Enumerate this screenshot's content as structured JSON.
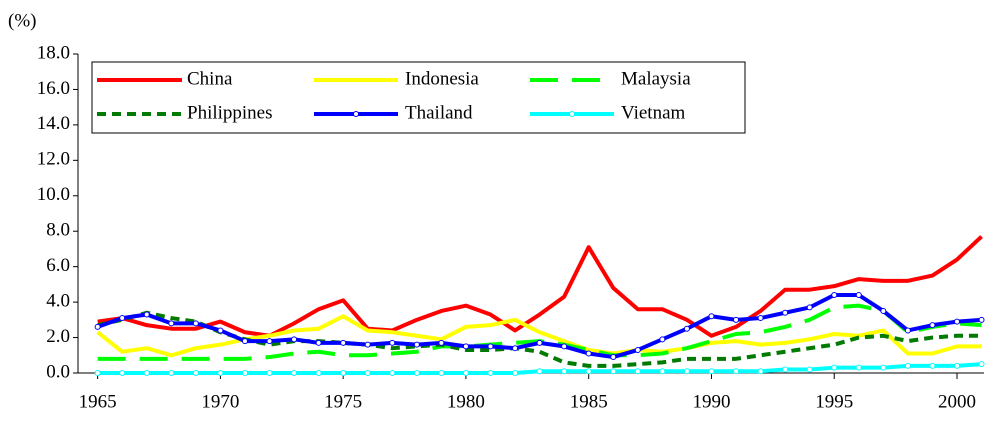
{
  "chart_data": {
    "type": "line",
    "y_label": "(%)",
    "x": [
      1965,
      1966,
      1967,
      1968,
      1969,
      1970,
      1971,
      1972,
      1973,
      1974,
      1975,
      1976,
      1977,
      1978,
      1979,
      1980,
      1981,
      1982,
      1983,
      1984,
      1985,
      1986,
      1987,
      1988,
      1989,
      1990,
      1991,
      1992,
      1993,
      1994,
      1995,
      1996,
      1997,
      1998,
      1999,
      2000,
      2001
    ],
    "xlim": [
      1964.2,
      2001.1
    ],
    "xticks": [
      1965,
      1970,
      1975,
      1980,
      1985,
      1990,
      1995,
      2000
    ],
    "ylim": [
      0,
      18
    ],
    "yticks": [
      {
        "value": 0,
        "label": "0.0"
      },
      {
        "value": 2,
        "label": "2.0"
      },
      {
        "value": 4,
        "label": "4.0"
      },
      {
        "value": 6,
        "label": "6.0"
      },
      {
        "value": 8,
        "label": "8.0"
      },
      {
        "value": 10,
        "label": "10.0"
      },
      {
        "value": 12,
        "label": "12.0"
      },
      {
        "value": 14,
        "label": "14.0"
      },
      {
        "value": 16,
        "label": "16.0"
      },
      {
        "value": 18,
        "label": "18.0"
      }
    ],
    "grid": false,
    "legend": "top-left",
    "series": [
      {
        "name": "China",
        "color": "#ff0000",
        "line_style": "solid",
        "marker": false,
        "values": [
          2.9,
          3.1,
          2.7,
          2.5,
          2.5,
          2.9,
          2.3,
          2.1,
          2.8,
          3.6,
          4.1,
          2.5,
          2.4,
          3.0,
          3.5,
          3.8,
          3.3,
          2.4,
          3.3,
          4.3,
          7.1,
          4.8,
          3.6,
          3.6,
          3.0,
          2.1,
          2.6,
          3.5,
          4.7,
          4.7,
          4.9,
          5.3,
          5.2,
          5.2,
          5.5,
          6.4,
          7.7
        ]
      },
      {
        "name": "Indonesia",
        "color": "#ffff00",
        "line_style": "solid",
        "marker": false,
        "values": [
          2.3,
          1.2,
          1.4,
          1.0,
          1.4,
          1.6,
          1.9,
          2.1,
          2.4,
          2.5,
          3.2,
          2.4,
          2.3,
          2.1,
          1.9,
          2.6,
          2.7,
          3.0,
          2.3,
          1.8,
          1.3,
          1.1,
          1.3,
          1.2,
          1.4,
          1.7,
          1.8,
          1.6,
          1.7,
          1.9,
          2.2,
          2.1,
          2.4,
          1.1,
          1.1,
          1.5,
          1.5
        ]
      },
      {
        "name": "Malaysia",
        "color": "#00ff00",
        "line_style": "dashed",
        "marker": false,
        "values": [
          0.8,
          0.8,
          0.8,
          0.8,
          0.8,
          0.8,
          0.8,
          0.9,
          1.1,
          1.2,
          1.0,
          1.0,
          1.1,
          1.2,
          1.5,
          1.5,
          1.6,
          1.7,
          1.8,
          1.6,
          1.3,
          1.0,
          1.0,
          1.1,
          1.4,
          1.8,
          2.2,
          2.3,
          2.6,
          3.0,
          3.7,
          3.8,
          3.5,
          2.3,
          2.6,
          2.8,
          2.7
        ]
      },
      {
        "name": "Philippines",
        "color": "#007a00",
        "line_style": "dotted",
        "marker": false,
        "values": [
          2.7,
          3.0,
          3.4,
          3.1,
          2.9,
          2.3,
          1.9,
          1.6,
          1.8,
          1.8,
          1.7,
          1.6,
          1.4,
          1.5,
          1.6,
          1.3,
          1.3,
          1.4,
          1.2,
          0.6,
          0.4,
          0.4,
          0.5,
          0.6,
          0.8,
          0.8,
          0.8,
          1.0,
          1.2,
          1.4,
          1.6,
          2.0,
          2.1,
          1.8,
          2.0,
          2.1,
          2.1
        ]
      },
      {
        "name": "Thailand",
        "color": "#0000ff",
        "line_style": "solid",
        "marker": true,
        "values": [
          2.6,
          3.1,
          3.3,
          2.8,
          2.8,
          2.4,
          1.8,
          1.8,
          1.9,
          1.7,
          1.7,
          1.6,
          1.7,
          1.6,
          1.7,
          1.5,
          1.5,
          1.4,
          1.7,
          1.5,
          1.1,
          0.9,
          1.3,
          1.9,
          2.5,
          3.2,
          3.0,
          3.1,
          3.4,
          3.7,
          4.4,
          4.4,
          3.5,
          2.4,
          2.7,
          2.9,
          3.0
        ]
      },
      {
        "name": "Vietnam",
        "color": "#00ffff",
        "line_style": "solid",
        "marker": true,
        "values": [
          0,
          0,
          0,
          0,
          0,
          0,
          0,
          0,
          0,
          0,
          0,
          0,
          0,
          0,
          0,
          0,
          0,
          0,
          0.1,
          0.1,
          0.1,
          0.1,
          0.1,
          0.1,
          0.1,
          0.1,
          0.1,
          0.1,
          0.2,
          0.2,
          0.3,
          0.3,
          0.3,
          0.4,
          0.4,
          0.4,
          0.5
        ]
      }
    ]
  }
}
